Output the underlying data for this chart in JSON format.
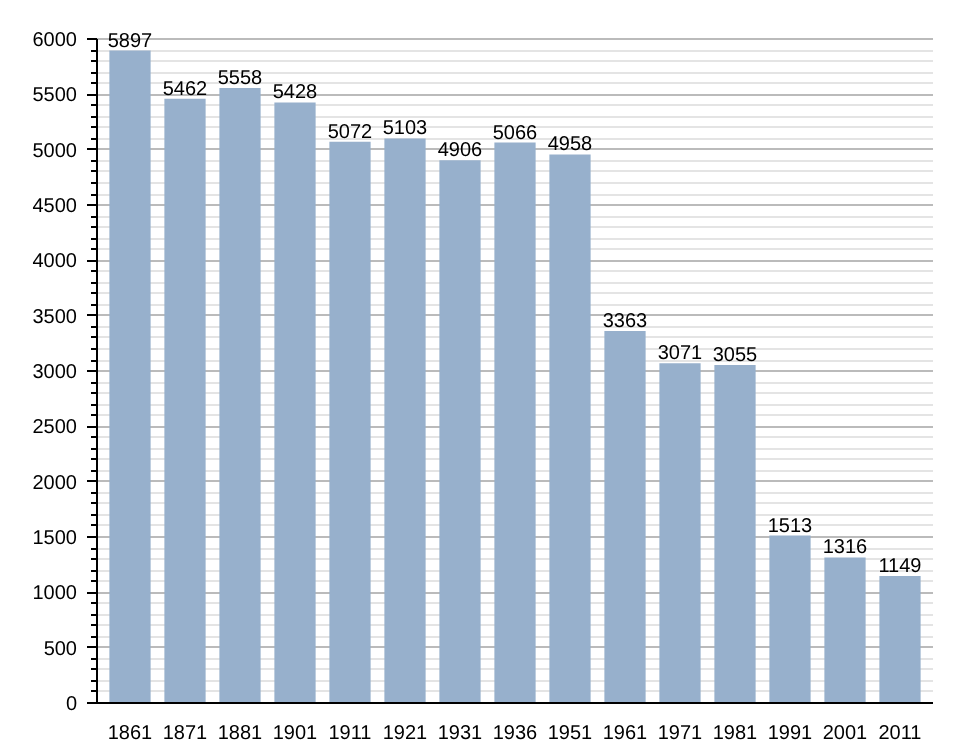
{
  "chart_data": {
    "type": "bar",
    "categories": [
      "1861",
      "1871",
      "1881",
      "1901",
      "1911",
      "1921",
      "1931",
      "1936",
      "1951",
      "1961",
      "1971",
      "1981",
      "1991",
      "2001",
      "2011"
    ],
    "values": [
      5897,
      5462,
      5558,
      5428,
      5072,
      5103,
      4906,
      5066,
      4958,
      3363,
      3071,
      3055,
      1513,
      1316,
      1149
    ],
    "color": "#97b0cc",
    "ylim": [
      0,
      6000
    ],
    "yticks": [
      0,
      500,
      1000,
      1500,
      2000,
      2500,
      3000,
      3500,
      4000,
      4500,
      5000,
      5500,
      6000
    ],
    "grid": "y",
    "data_labels": true
  }
}
